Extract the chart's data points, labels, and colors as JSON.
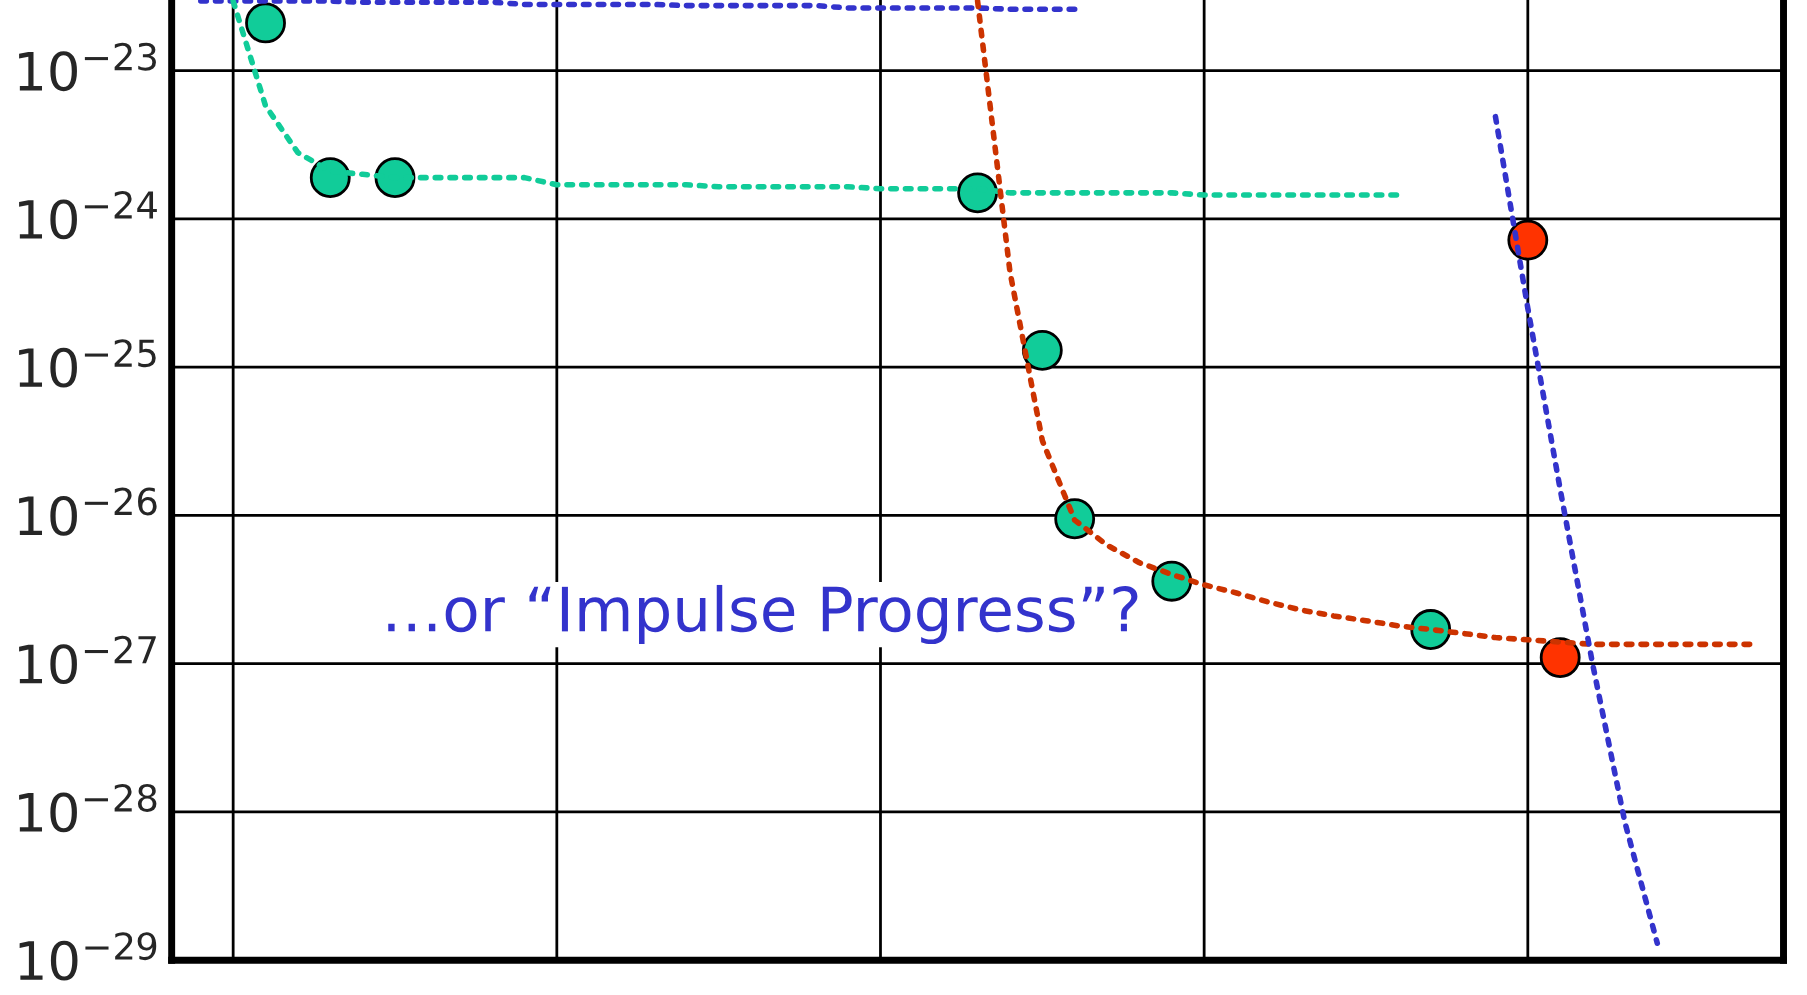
{
  "chart_data": {
    "type": "scatter",
    "log": "y",
    "grid": true,
    "categories": [
      null,
      null,
      null,
      null,
      null,
      null,
      null,
      null,
      null,
      null,
      null,
      null,
      null,
      null,
      null,
      null,
      null,
      null,
      null,
      null,
      null,
      null,
      null,
      null,
      null,
      null,
      null,
      null,
      null,
      null,
      null,
      null,
      null,
      null,
      null,
      null,
      null,
      null,
      null,
      null,
      null,
      null,
      null,
      null,
      null,
      null,
      null,
      null,
      null
    ],
    "ylim": [
      1e-29,
      3e-23
    ],
    "yticks": [
      {
        "value": 1e-23,
        "label": "10$^{−23}$"
      },
      {
        "value": 1e-24,
        "label": "10$^{−24}$"
      },
      {
        "value": 1e-25,
        "label": "10$^{−25}$"
      },
      {
        "value": 1e-26,
        "label": "10$^{−26}$"
      },
      {
        "value": 1e-27,
        "label": "10$^{−27}$"
      },
      {
        "value": 1e-28,
        "label": "10$^{−28}$"
      },
      {
        "value": 1e-29,
        "label": "10$^{−29}$"
      }
    ],
    "annotations": [
      "…or “Impulse Progress”?"
    ],
    "series": [
      {
        "type": "line",
        "line_style": "dotted",
        "marker": "none",
        "color": "#3333cc",
        "values": [
          2.95e-23,
          2.95e-23,
          2.95e-23,
          2.95e-23,
          2.95e-23,
          2.9e-23,
          2.9e-23,
          2.9e-23,
          2.9e-23,
          2.9e-23,
          2.8e-23,
          2.8e-23,
          2.8e-23,
          2.8e-23,
          2.8e-23,
          2.75e-23,
          2.75e-23,
          2.75e-23,
          2.75e-23,
          2.75e-23,
          2.65e-23,
          2.65e-23,
          2.65e-23,
          2.65e-23,
          2.65e-23,
          2.6e-23,
          2.6e-23,
          2.6e-23,
          null,
          null,
          null,
          null,
          null,
          null,
          null,
          null,
          null,
          null,
          null,
          null,
          null,
          null,
          null,
          null,
          null,
          null,
          null,
          null,
          null
        ]
      },
      {
        "type": "line",
        "line_style": "dotted",
        "marker": "none",
        "color": "#11cc99",
        "values": [
          null,
          2.95e-23,
          5.8e-24,
          2.8e-24,
          2.1e-24,
          2e-24,
          1.9e-24,
          1.9e-24,
          1.9e-24,
          1.9e-24,
          1.9e-24,
          1.7e-24,
          1.7e-24,
          1.7e-24,
          1.7e-24,
          1.7e-24,
          1.65e-24,
          1.65e-24,
          1.65e-24,
          1.65e-24,
          1.65e-24,
          1.6e-24,
          1.6e-24,
          1.6e-24,
          1.6e-24,
          1.5e-24,
          1.5e-24,
          1.5e-24,
          1.5e-24,
          1.5e-24,
          1.5e-24,
          1.45e-24,
          1.45e-24,
          1.45e-24,
          1.45e-24,
          1.45e-24,
          1.45e-24,
          1.45e-24,
          null,
          null,
          null,
          null,
          null,
          null,
          null,
          null,
          null,
          null,
          null
        ]
      },
      {
        "type": "line",
        "line_style": "dotted",
        "marker": "none",
        "color": "#cc3300",
        "values": [
          null,
          null,
          null,
          null,
          null,
          null,
          null,
          null,
          null,
          null,
          null,
          null,
          null,
          null,
          null,
          null,
          null,
          null,
          null,
          null,
          null,
          null,
          null,
          null,
          2.95e-23,
          4.4e-25,
          3.2e-26,
          9.3e-27,
          6.3e-27,
          4.8e-27,
          4e-27,
          3.4e-27,
          3e-27,
          2.6e-27,
          2.3e-27,
          2.1e-27,
          1.95e-27,
          1.8e-27,
          1.7e-27,
          1.6e-27,
          1.5e-27,
          1.45e-27,
          1.4e-27,
          1.35e-27,
          1.35e-27,
          1.35e-27,
          1.35e-27,
          1.35e-27,
          1.35e-27
        ]
      },
      {
        "type": "line",
        "line_style": "dotted",
        "marker": "none",
        "color": "#3333cc",
        "values": [
          null,
          null,
          null,
          null,
          null,
          null,
          null,
          null,
          null,
          null,
          null,
          null,
          null,
          null,
          null,
          null,
          null,
          null,
          null,
          null,
          null,
          null,
          null,
          null,
          null,
          null,
          null,
          null,
          null,
          null,
          null,
          null,
          null,
          null,
          null,
          null,
          null,
          null,
          null,
          null,
          4.9e-24,
          2.5e-25,
          1.5e-26,
          1e-27,
          8.5e-29,
          1.3e-29,
          null,
          null,
          null
        ]
      },
      {
        "marker": "circle",
        "color": "#11cc99",
        "values": [
          null,
          null,
          2.1e-23,
          null,
          1.9e-24,
          null,
          1.9e-24,
          null,
          null,
          null,
          null,
          null,
          null,
          null,
          null,
          null,
          null,
          null,
          null,
          null,
          null,
          null,
          null,
          null,
          1.5e-24,
          null,
          1.3e-25,
          9.5e-27,
          null,
          null,
          3.6e-27,
          null,
          null,
          null,
          null,
          null,
          null,
          null,
          1.7e-27,
          null,
          null,
          null,
          null,
          null,
          null,
          null,
          null,
          null,
          null
        ]
      },
      {
        "marker": "circle",
        "color": "#ff3300",
        "values": [
          null,
          null,
          null,
          null,
          null,
          null,
          null,
          null,
          null,
          null,
          null,
          null,
          null,
          null,
          null,
          null,
          null,
          null,
          null,
          null,
          null,
          null,
          null,
          null,
          null,
          null,
          null,
          null,
          null,
          null,
          null,
          null,
          null,
          null,
          null,
          null,
          null,
          null,
          null,
          null,
          null,
          7.2e-25,
          1.1e-27,
          null,
          null,
          null,
          null,
          null,
          null
        ]
      }
    ]
  }
}
